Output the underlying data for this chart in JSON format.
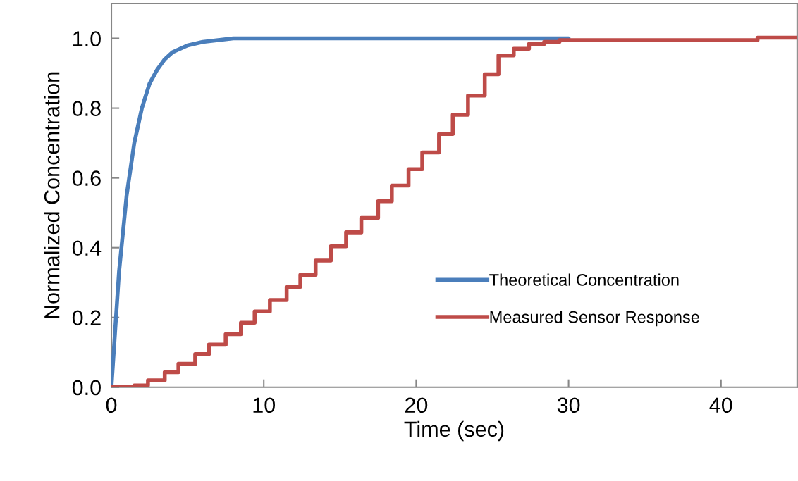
{
  "chart_data": {
    "type": "line",
    "xlabel": "Time (sec)",
    "ylabel": "Normalized Concentration",
    "xlim": [
      0,
      45
    ],
    "xticks": [
      0,
      10,
      20,
      30,
      40
    ],
    "ylim": [
      0,
      1.1
    ],
    "yticks": [
      {
        "value": 0,
        "label": "0.0"
      },
      {
        "value": 0.2,
        "label": "0.2"
      },
      {
        "value": 0.4,
        "label": "0.4"
      },
      {
        "value": 0.6,
        "label": "0.6"
      },
      {
        "value": 0.8,
        "label": "0.8"
      },
      {
        "value": 1.0,
        "label": "1.0"
      }
    ],
    "grid": false,
    "legend": "lower right",
    "marker": "none",
    "line_style": "solid",
    "series": [
      {
        "name": "Theoretical Concentration",
        "color": "#4a7ebb",
        "x": [
          0,
          0.5,
          1,
          1.5,
          2,
          2.5,
          3,
          3.5,
          4,
          5,
          6,
          8,
          10,
          20,
          30
        ],
        "values": [
          0,
          0.33,
          0.55,
          0.7,
          0.8,
          0.87,
          0.91,
          0.94,
          0.96,
          0.98,
          0.99,
          1.0,
          1.0,
          1.0,
          1.0
        ]
      },
      {
        "name": "Measured Sensor Response",
        "color": "#be4b48",
        "type": "step",
        "x": [
          0,
          1.5,
          2.4,
          3.5,
          4.4,
          5.5,
          6.4,
          7.5,
          8.5,
          9.4,
          10.4,
          11.5,
          12.4,
          13.4,
          14.4,
          15.4,
          16.4,
          17.5,
          18.4,
          19.5,
          20.4,
          21.5,
          22.4,
          23.4,
          24.5,
          25.4,
          26.4,
          27.4,
          28.4,
          29.4,
          42.4,
          45
        ],
        "values": [
          0,
          0.005,
          0.02,
          0.043,
          0.067,
          0.095,
          0.122,
          0.152,
          0.185,
          0.217,
          0.25,
          0.288,
          0.322,
          0.363,
          0.404,
          0.444,
          0.485,
          0.533,
          0.578,
          0.625,
          0.673,
          0.726,
          0.781,
          0.836,
          0.897,
          0.951,
          0.97,
          0.984,
          0.99,
          0.995,
          1.002,
          1.002
        ]
      }
    ]
  }
}
